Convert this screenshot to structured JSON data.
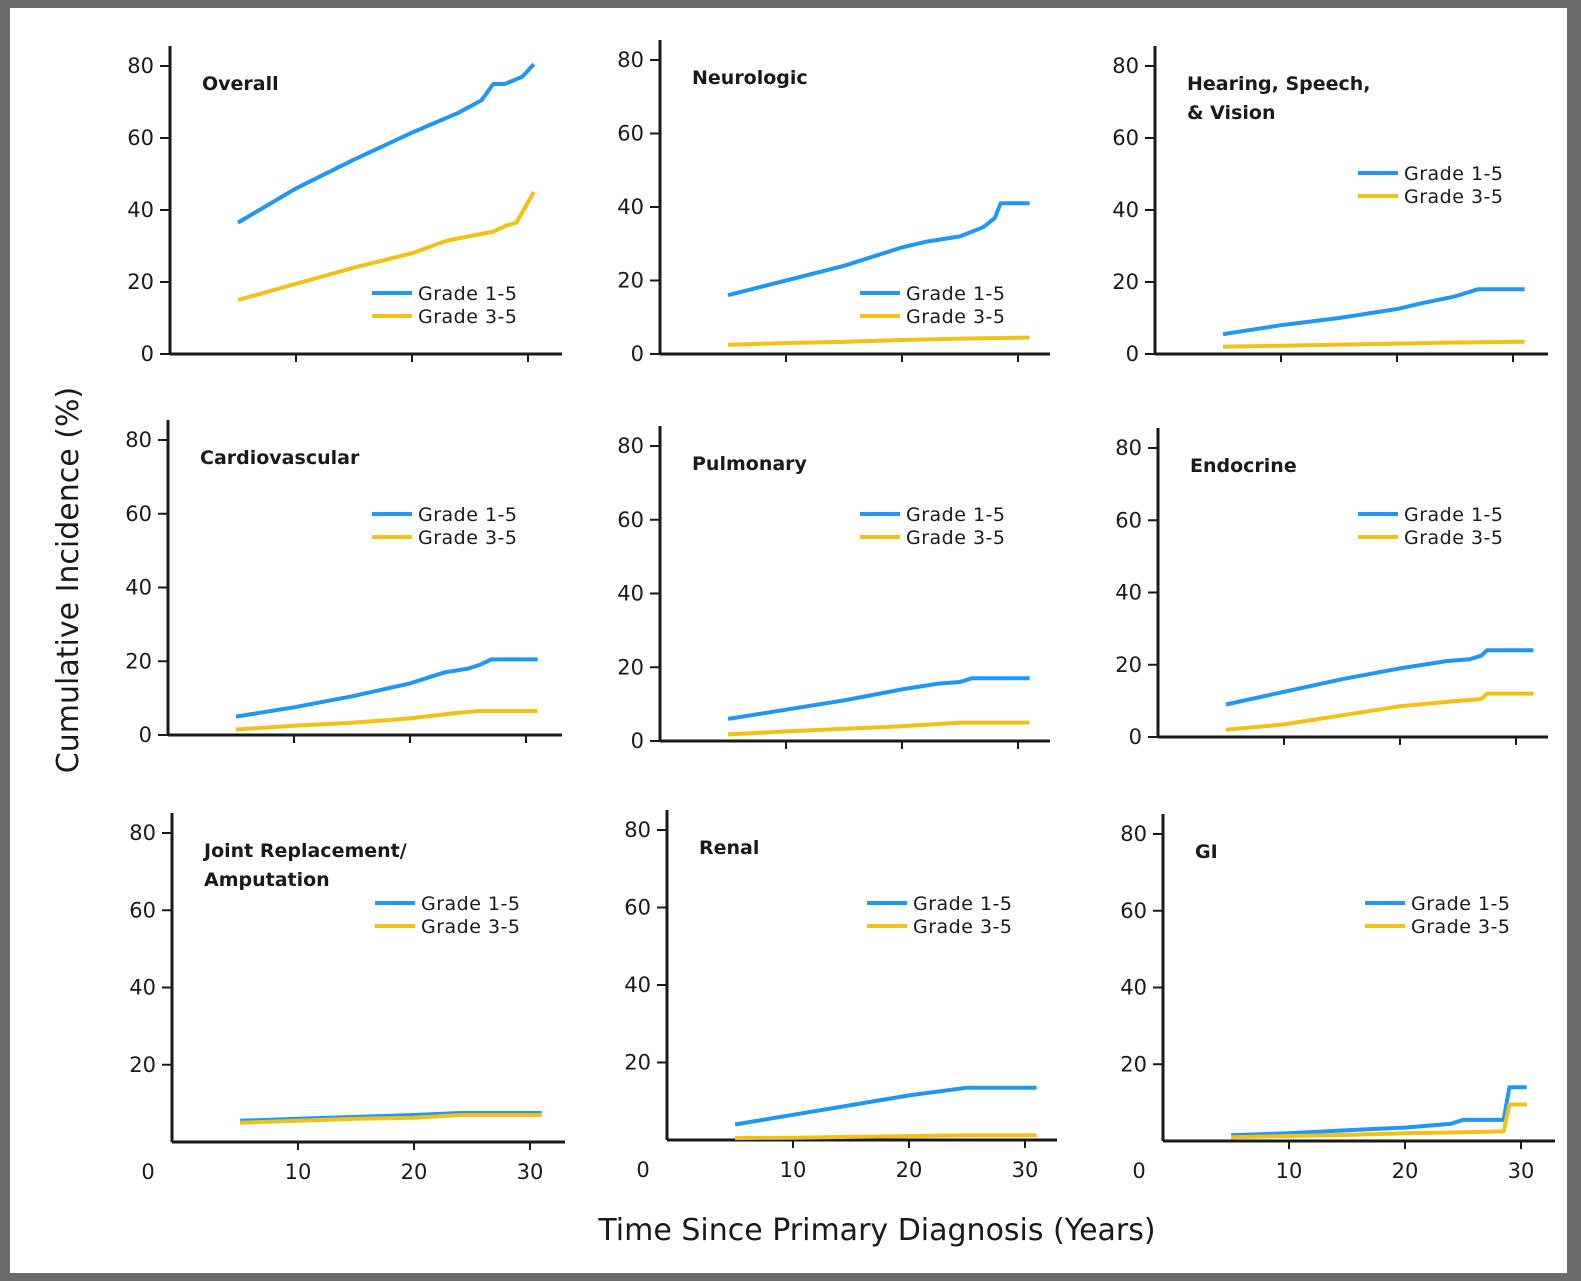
{
  "colors": {
    "grade_1_5": "#2196f3",
    "grade_3_5": "#f2c118",
    "axis": "#1a1a1a"
  },
  "ylabel": "Cumulative Incidence (%)",
  "xlabel": "Time Since Primary Diagnosis (Years)",
  "chart_data": [
    {
      "type": "line",
      "title": "Overall",
      "legend": "bottom-right",
      "x_ticks": [
        0,
        10,
        20,
        30
      ],
      "x_tick_labels_shown": false,
      "xlim": [
        0,
        32
      ],
      "y_ticks": [
        0,
        20,
        40,
        60,
        80
      ],
      "ylim": [
        0,
        82
      ],
      "series": [
        {
          "name": "Grade 1-5",
          "x": [
            5,
            10,
            15,
            20,
            24,
            26,
            27,
            28,
            29.5,
            30.5
          ],
          "y": [
            36.5,
            46,
            54,
            61.5,
            67,
            70.5,
            75,
            75,
            77,
            80.5
          ]
        },
        {
          "name": "Grade 3-5",
          "x": [
            5,
            10,
            15,
            20,
            23,
            27,
            28,
            29,
            30.5
          ],
          "y": [
            15,
            19.5,
            24,
            28,
            31.5,
            34,
            35.5,
            36.5,
            45
          ]
        }
      ]
    },
    {
      "type": "line",
      "title": "Neurologic",
      "legend": "bottom-right",
      "x_ticks": [
        0,
        10,
        20,
        30
      ],
      "x_tick_labels_shown": false,
      "xlim": [
        0,
        32
      ],
      "y_ticks": [
        0,
        20,
        40,
        60,
        80
      ],
      "ylim": [
        0,
        82
      ],
      "series": [
        {
          "name": "Grade 1-5",
          "x": [
            5,
            10,
            15,
            20,
            22,
            25,
            27,
            28,
            28.5,
            31
          ],
          "y": [
            16,
            20,
            24,
            29,
            30.5,
            32,
            34.5,
            37,
            41,
            41
          ]
        },
        {
          "name": "Grade 3-5",
          "x": [
            5,
            10,
            15,
            20,
            25,
            31
          ],
          "y": [
            2.5,
            3,
            3.3,
            3.8,
            4.2,
            4.5
          ]
        }
      ]
    },
    {
      "type": "line",
      "title": "Hearing, Speech, & Vision",
      "legend": "top-right",
      "x_ticks": [
        0,
        10,
        20,
        30
      ],
      "x_tick_labels_shown": false,
      "xlim": [
        0,
        32
      ],
      "y_ticks": [
        0,
        20,
        40,
        60,
        80
      ],
      "ylim": [
        0,
        82
      ],
      "series": [
        {
          "name": "Grade 1-5",
          "x": [
            5,
            10,
            15,
            20,
            22,
            25,
            27,
            31
          ],
          "y": [
            5.5,
            8,
            10,
            12.5,
            14,
            16,
            18,
            18
          ]
        },
        {
          "name": "Grade 3-5",
          "x": [
            5,
            10,
            15,
            20,
            25,
            31
          ],
          "y": [
            2,
            2.3,
            2.6,
            2.9,
            3.2,
            3.4
          ]
        }
      ]
    },
    {
      "type": "line",
      "title": "Cardiovascular",
      "legend": "top-right",
      "x_ticks": [
        0,
        10,
        20,
        30
      ],
      "x_tick_labels_shown": false,
      "xlim": [
        0,
        32
      ],
      "y_ticks": [
        0,
        20,
        40,
        60,
        80
      ],
      "ylim": [
        0,
        82
      ],
      "series": [
        {
          "name": "Grade 1-5",
          "x": [
            5,
            10,
            15,
            20,
            23,
            25,
            26,
            27,
            31
          ],
          "y": [
            5,
            7.5,
            10.5,
            14,
            17,
            18,
            19,
            20.5,
            20.5
          ]
        },
        {
          "name": "Grade 3-5",
          "x": [
            5,
            10,
            15,
            20,
            24,
            26,
            31
          ],
          "y": [
            1.5,
            2.5,
            3.3,
            4.5,
            6,
            6.5,
            6.5
          ]
        }
      ]
    },
    {
      "type": "line",
      "title": "Pulmonary",
      "legend": "top-right",
      "x_ticks": [
        0,
        10,
        20,
        30
      ],
      "x_tick_labels_shown": false,
      "xlim": [
        0,
        32
      ],
      "y_ticks": [
        0,
        20,
        40,
        60,
        80
      ],
      "ylim": [
        0,
        82
      ],
      "series": [
        {
          "name": "Grade 1-5",
          "x": [
            5,
            10,
            15,
            20,
            23,
            25,
            26,
            31
          ],
          "y": [
            6,
            8.5,
            11,
            14,
            15.5,
            16,
            17,
            17
          ]
        },
        {
          "name": "Grade 3-5",
          "x": [
            5,
            10,
            15,
            20,
            25,
            31
          ],
          "y": [
            1.8,
            2.6,
            3.3,
            4,
            5,
            5
          ]
        }
      ]
    },
    {
      "type": "line",
      "title": "Endocrine",
      "legend": "top-right",
      "x_ticks": [
        0,
        10,
        20,
        30
      ],
      "x_tick_labels_shown": false,
      "xlim": [
        0,
        32
      ],
      "y_ticks": [
        0,
        20,
        40,
        60,
        80
      ],
      "ylim": [
        0,
        82
      ],
      "series": [
        {
          "name": "Grade 1-5",
          "x": [
            5,
            10,
            15,
            20,
            24,
            26,
            27,
            27.5,
            31.5
          ],
          "y": [
            9,
            12.5,
            16,
            19,
            21,
            21.5,
            22.5,
            24,
            24
          ]
        },
        {
          "name": "Grade 3-5",
          "x": [
            5,
            10,
            15,
            20,
            25,
            27,
            27.5,
            31.5
          ],
          "y": [
            2,
            3.5,
            6,
            8.5,
            10,
            10.5,
            12,
            12
          ]
        }
      ]
    },
    {
      "type": "line",
      "title": "Joint Replacement/ Amputation",
      "legend": "top-right",
      "x_ticks": [
        0,
        10,
        20,
        30
      ],
      "x_tick_labels_shown": true,
      "xlim": [
        0,
        32
      ],
      "y_ticks": [
        0,
        20,
        40,
        60,
        80
      ],
      "ylim": [
        0,
        82
      ],
      "series": [
        {
          "name": "Grade 1-5",
          "x": [
            5,
            10,
            15,
            20,
            24,
            31
          ],
          "y": [
            5.5,
            6,
            6.5,
            7,
            7.5,
            7.5
          ]
        },
        {
          "name": "Grade 3-5",
          "x": [
            5,
            10,
            15,
            20,
            24,
            31
          ],
          "y": [
            5,
            5.5,
            6,
            6.3,
            7,
            7
          ]
        }
      ]
    },
    {
      "type": "line",
      "title": "Renal",
      "legend": "top-right",
      "x_ticks": [
        0,
        10,
        20,
        30
      ],
      "x_tick_labels_shown": true,
      "xlim": [
        0,
        32
      ],
      "y_ticks": [
        0,
        20,
        40,
        60,
        80
      ],
      "ylim": [
        0,
        82
      ],
      "series": [
        {
          "name": "Grade 1-5",
          "x": [
            5,
            10,
            15,
            20,
            25,
            31
          ],
          "y": [
            4,
            6.5,
            9,
            11.5,
            13.5,
            13.5
          ]
        },
        {
          "name": "Grade 3-5",
          "x": [
            5,
            10,
            15,
            20,
            25,
            31
          ],
          "y": [
            0.5,
            0.6,
            0.8,
            1,
            1.2,
            1.2
          ]
        }
      ]
    },
    {
      "type": "line",
      "title": "GI",
      "legend": "top-right",
      "x_ticks": [
        0,
        10,
        20,
        30
      ],
      "x_tick_labels_shown": true,
      "xlim": [
        0,
        32
      ],
      "y_ticks": [
        0,
        20,
        40,
        60,
        80
      ],
      "ylim": [
        0,
        82
      ],
      "series": [
        {
          "name": "Grade 1-5",
          "x": [
            5,
            10,
            15,
            20,
            24,
            25,
            28.5,
            29,
            30.5
          ],
          "y": [
            1.5,
            2,
            2.8,
            3.5,
            4.5,
            5.5,
            5.5,
            14,
            14
          ]
        },
        {
          "name": "Grade 3-5",
          "x": [
            5,
            10,
            15,
            20,
            25,
            28.5,
            29,
            30.5
          ],
          "y": [
            1,
            1.3,
            1.6,
            2,
            2.3,
            2.5,
            9.5,
            9.5
          ]
        }
      ]
    }
  ]
}
